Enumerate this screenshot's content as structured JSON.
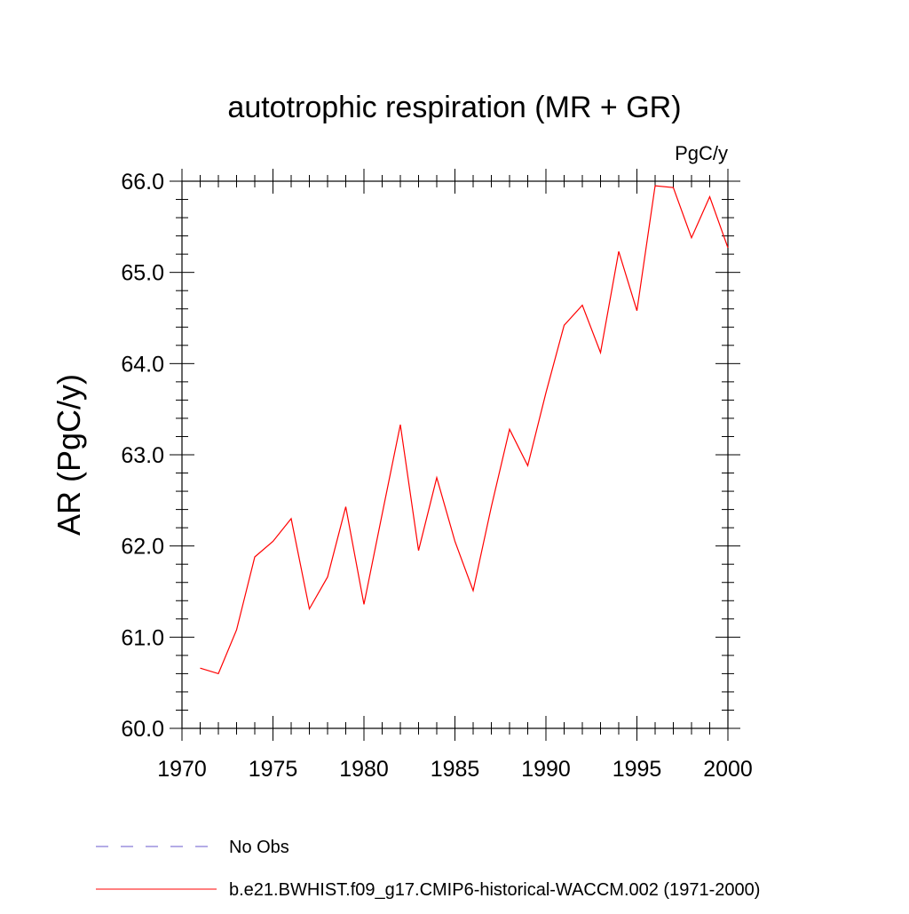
{
  "chart_data": {
    "type": "line",
    "title": "autotrophic respiration (MR + GR)",
    "units_label": "PgC/y",
    "ylabel": "AR  (PgC/y)",
    "xlabel": "",
    "xlim": [
      1970,
      2000
    ],
    "ylim": [
      60.0,
      66.0
    ],
    "xticks": [
      "1970",
      "1975",
      "1980",
      "1985",
      "1990",
      "1995",
      "2000"
    ],
    "yticks": [
      "60.0",
      "61.0",
      "62.0",
      "63.0",
      "64.0",
      "65.0",
      "66.0"
    ],
    "grid": false,
    "legend_position": "bottom",
    "series": [
      {
        "name": "b.e21.BWHIST.f09_g17.CMIP6-historical-WACCM.002 (1971-2000)",
        "color": "#ff0000",
        "style": "solid",
        "x": [
          1971,
          1972,
          1973,
          1974,
          1975,
          1976,
          1977,
          1978,
          1979,
          1980,
          1981,
          1982,
          1983,
          1984,
          1985,
          1986,
          1987,
          1988,
          1989,
          1990,
          1991,
          1992,
          1993,
          1994,
          1995,
          1996,
          1997,
          1998,
          1999,
          2000
        ],
        "values": [
          60.66,
          60.6,
          61.08,
          61.88,
          62.05,
          62.3,
          61.31,
          61.66,
          62.43,
          61.36,
          62.35,
          63.33,
          61.95,
          62.75,
          62.05,
          61.51,
          62.43,
          63.28,
          62.88,
          63.68,
          64.42,
          64.64,
          64.12,
          65.23,
          64.58,
          65.95,
          65.93,
          65.38,
          65.83,
          65.27
        ]
      }
    ],
    "legend_entries": [
      {
        "label": "No Obs",
        "color": "#6a5acd",
        "style": "dashed"
      },
      {
        "label": "b.e21.BWHIST.f09_g17.CMIP6-historical-WACCM.002 (1971-2000)",
        "color": "#ff0000",
        "style": "solid"
      }
    ]
  }
}
